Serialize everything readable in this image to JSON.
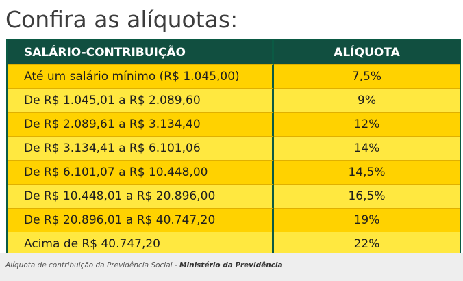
{
  "heading": "Confira as alíquotas:",
  "table": {
    "headers": {
      "range": "SALÁRIO-CONTRIBUIÇÃO",
      "rate": "ALÍQUOTA"
    },
    "rows": [
      {
        "range": "Até um salário mínimo (R$ 1.045,00)",
        "rate": "7,5%"
      },
      {
        "range": "De R$ 1.045,01 a R$ 2.089,60",
        "rate": "9%"
      },
      {
        "range": "De R$ 2.089,61 a R$ 3.134,40",
        "rate": "12%"
      },
      {
        "range": "De R$ 3.134,41 a R$ 6.101,06",
        "rate": "14%"
      },
      {
        "range": "De R$ 6.101,07 a R$ 10.448,00",
        "rate": "14,5%"
      },
      {
        "range": "De R$ 10.448,01 a R$ 20.896,00",
        "rate": "16,5%"
      },
      {
        "range": "De R$ 20.896,01 a R$ 40.747,20",
        "rate": "19%"
      },
      {
        "range": "Acima de R$ 40.747,20",
        "rate": "22%"
      }
    ]
  },
  "caption": {
    "text": "Alíquota de contribuição da Previdência Social",
    "separator": " - ",
    "source": "Ministério da Previdência"
  },
  "colors": {
    "header_bg": "#114f40",
    "row_dark": "#ffd200",
    "row_light": "#ffe840"
  }
}
